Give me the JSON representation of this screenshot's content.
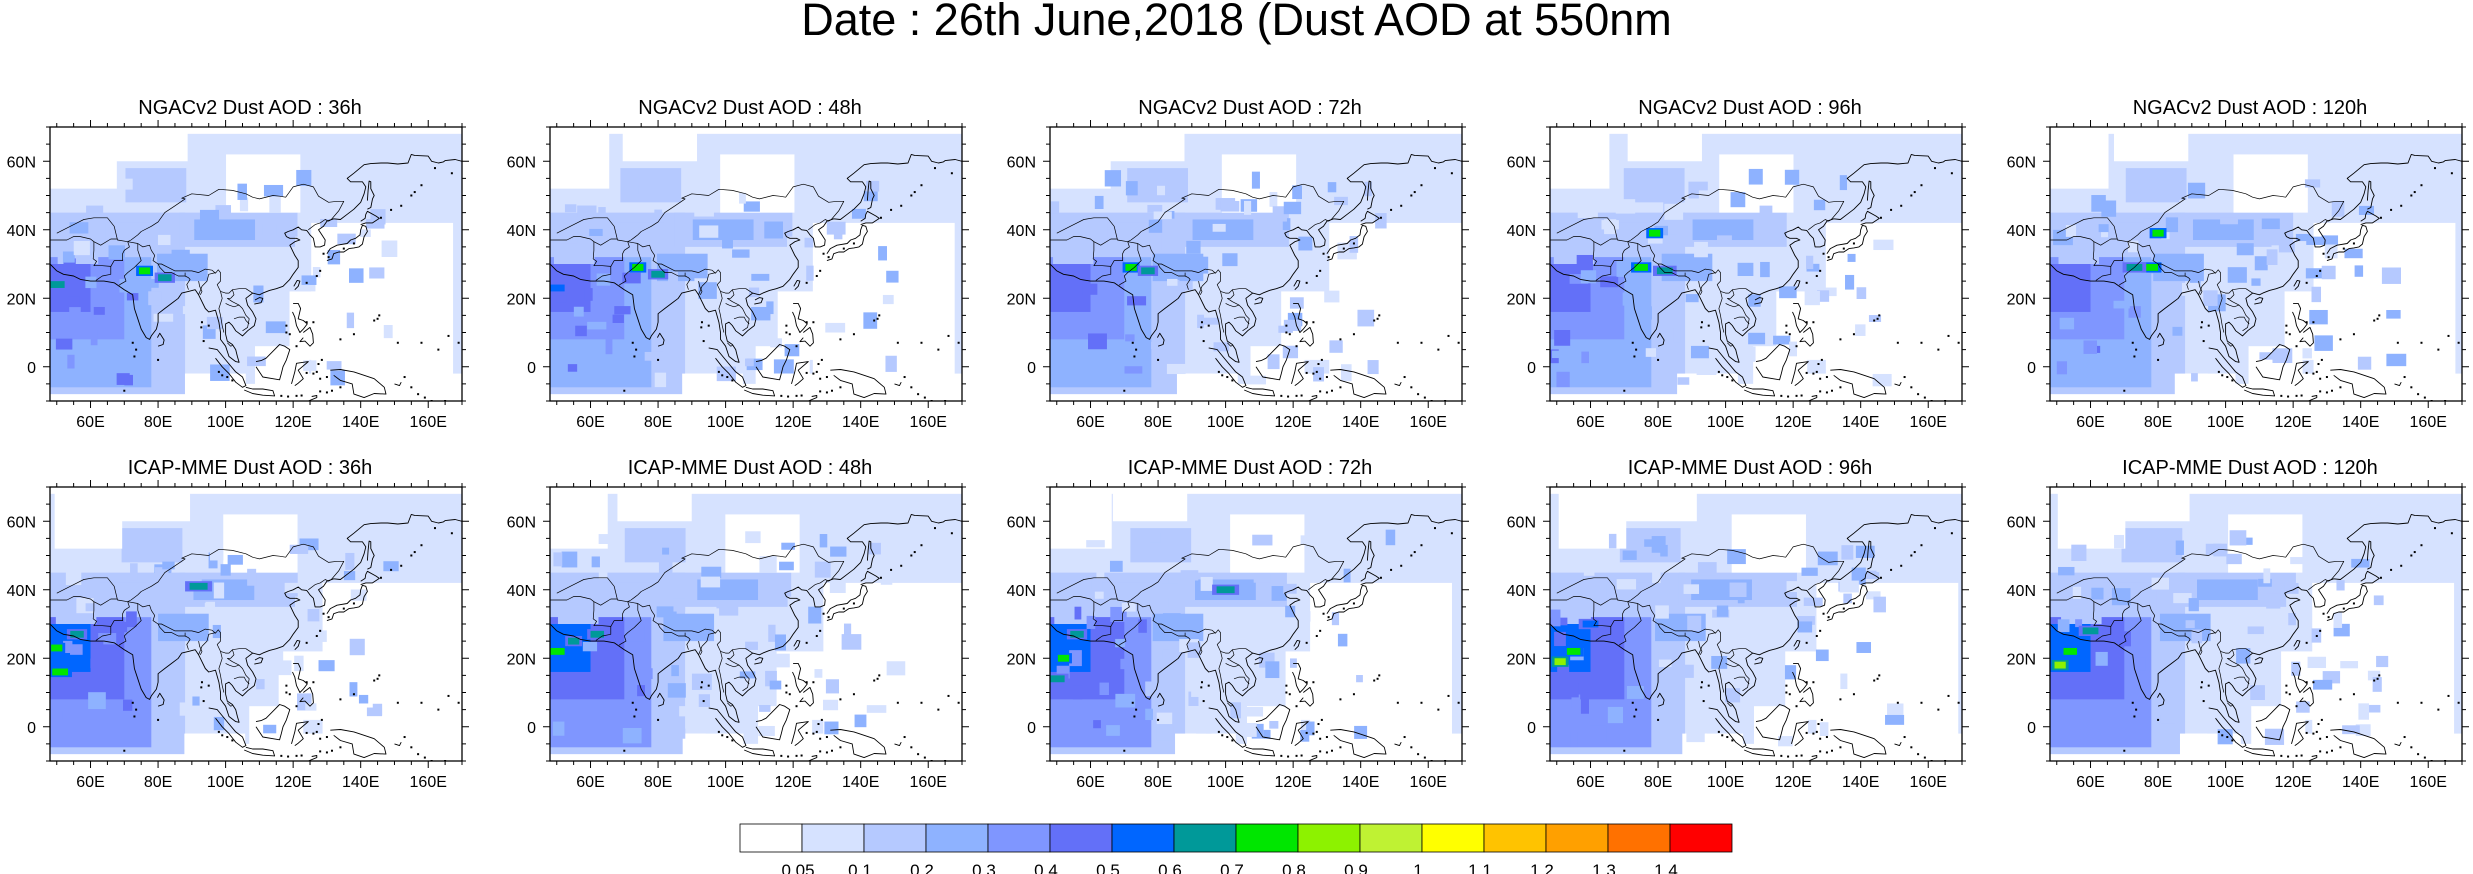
{
  "title": "Date : 26th June,2018 (Dust AOD at 550nm",
  "rows": [
    {
      "model": "NGACv2",
      "panels": [
        {
          "title": "NGACv2 Dust AOD : 36h",
          "lead": "36h",
          "hotspots": [
            {
              "lon": 76,
              "lat": 28,
              "level": 8
            },
            {
              "lon": 82,
              "lat": 26,
              "level": 7
            },
            {
              "lon": 50,
              "lat": 24,
              "level": 7
            }
          ]
        },
        {
          "title": "NGACv2 Dust AOD : 48h",
          "lead": "48h",
          "hotspots": [
            {
              "lon": 74,
              "lat": 29,
              "level": 8
            },
            {
              "lon": 80,
              "lat": 27,
              "level": 7
            },
            {
              "lon": 50,
              "lat": 23,
              "level": 6
            }
          ]
        },
        {
          "title": "NGACv2 Dust AOD : 72h",
          "lead": "72h",
          "hotspots": [
            {
              "lon": 72,
              "lat": 29,
              "level": 8
            },
            {
              "lon": 77,
              "lat": 28,
              "level": 7
            }
          ]
        },
        {
          "title": "NGACv2 Dust AOD : 96h",
          "lead": "96h",
          "hotspots": [
            {
              "lon": 79,
              "lat": 39,
              "level": 8
            },
            {
              "lon": 75,
              "lat": 29,
              "level": 8
            },
            {
              "lon": 82,
              "lat": 28,
              "level": 7
            }
          ]
        },
        {
          "title": "NGACv2 Dust AOD : 120h",
          "lead": "120h",
          "hotspots": [
            {
              "lon": 80,
              "lat": 39,
              "level": 8
            },
            {
              "lon": 78,
              "lat": 29,
              "level": 8
            },
            {
              "lon": 73,
              "lat": 29,
              "level": 7
            }
          ]
        }
      ]
    },
    {
      "model": "ICAP-MME",
      "panels": [
        {
          "title": "ICAP-MME Dust AOD : 36h",
          "lead": "36h",
          "hotspots": [
            {
              "lon": 50,
              "lat": 23,
              "level": 8
            },
            {
              "lon": 56,
              "lat": 27,
              "level": 7
            },
            {
              "lon": 51,
              "lat": 16,
              "level": 8
            },
            {
              "lon": 92,
              "lat": 41,
              "level": 7
            }
          ]
        },
        {
          "title": "ICAP-MME Dust AOD : 48h",
          "lead": "48h",
          "hotspots": [
            {
              "lon": 55,
              "lat": 25,
              "level": 7
            },
            {
              "lon": 62,
              "lat": 27,
              "level": 7
            },
            {
              "lon": 50,
              "lat": 22,
              "level": 8
            }
          ]
        },
        {
          "title": "ICAP-MME Dust AOD : 72h",
          "lead": "72h",
          "hotspots": [
            {
              "lon": 52,
              "lat": 20,
              "level": 8
            },
            {
              "lon": 56,
              "lat": 27,
              "level": 7
            },
            {
              "lon": 50,
              "lat": 14,
              "level": 7
            },
            {
              "lon": 100,
              "lat": 40,
              "level": 7
            }
          ]
        },
        {
          "title": "ICAP-MME Dust AOD : 96h",
          "lead": "96h",
          "hotspots": [
            {
              "lon": 51,
              "lat": 19,
              "level": 9
            },
            {
              "lon": 55,
              "lat": 22,
              "level": 8
            },
            {
              "lon": 60,
              "lat": 30,
              "level": 6
            }
          ]
        },
        {
          "title": "ICAP-MME Dust AOD : 120h",
          "lead": "120h",
          "hotspots": [
            {
              "lon": 51,
              "lat": 18,
              "level": 9
            },
            {
              "lon": 54,
              "lat": 22,
              "level": 8
            },
            {
              "lon": 60,
              "lat": 28,
              "level": 7
            }
          ]
        }
      ]
    }
  ],
  "axes": {
    "lon_range": [
      48,
      170
    ],
    "lat_range": [
      -10,
      70
    ],
    "lon_ticks": [
      "60E",
      "80E",
      "100E",
      "120E",
      "140E",
      "160E"
    ],
    "lon_tick_values": [
      60,
      80,
      100,
      120,
      140,
      160
    ],
    "lat_ticks": [
      "0",
      "20N",
      "40N",
      "60N"
    ],
    "lat_tick_values": [
      0,
      20,
      40,
      60
    ]
  },
  "colorbar": {
    "labels": [
      "0.05",
      "0.1",
      "0.2",
      "0.3",
      "0.4",
      "0.5",
      "0.6",
      "0.7",
      "0.8",
      "0.9",
      "1",
      "1.1",
      "1.2",
      "1.3",
      "1.4"
    ],
    "colors": [
      "#ffffff",
      "#d6e2ff",
      "#b5c9ff",
      "#8eb2ff",
      "#7f96ff",
      "#6370f8",
      "#0066ff",
      "#009999",
      "#00e600",
      "#8df200",
      "#bff233",
      "#ffff00",
      "#ffc300",
      "#ffa000",
      "#ff7100",
      "#ff0000"
    ]
  }
}
